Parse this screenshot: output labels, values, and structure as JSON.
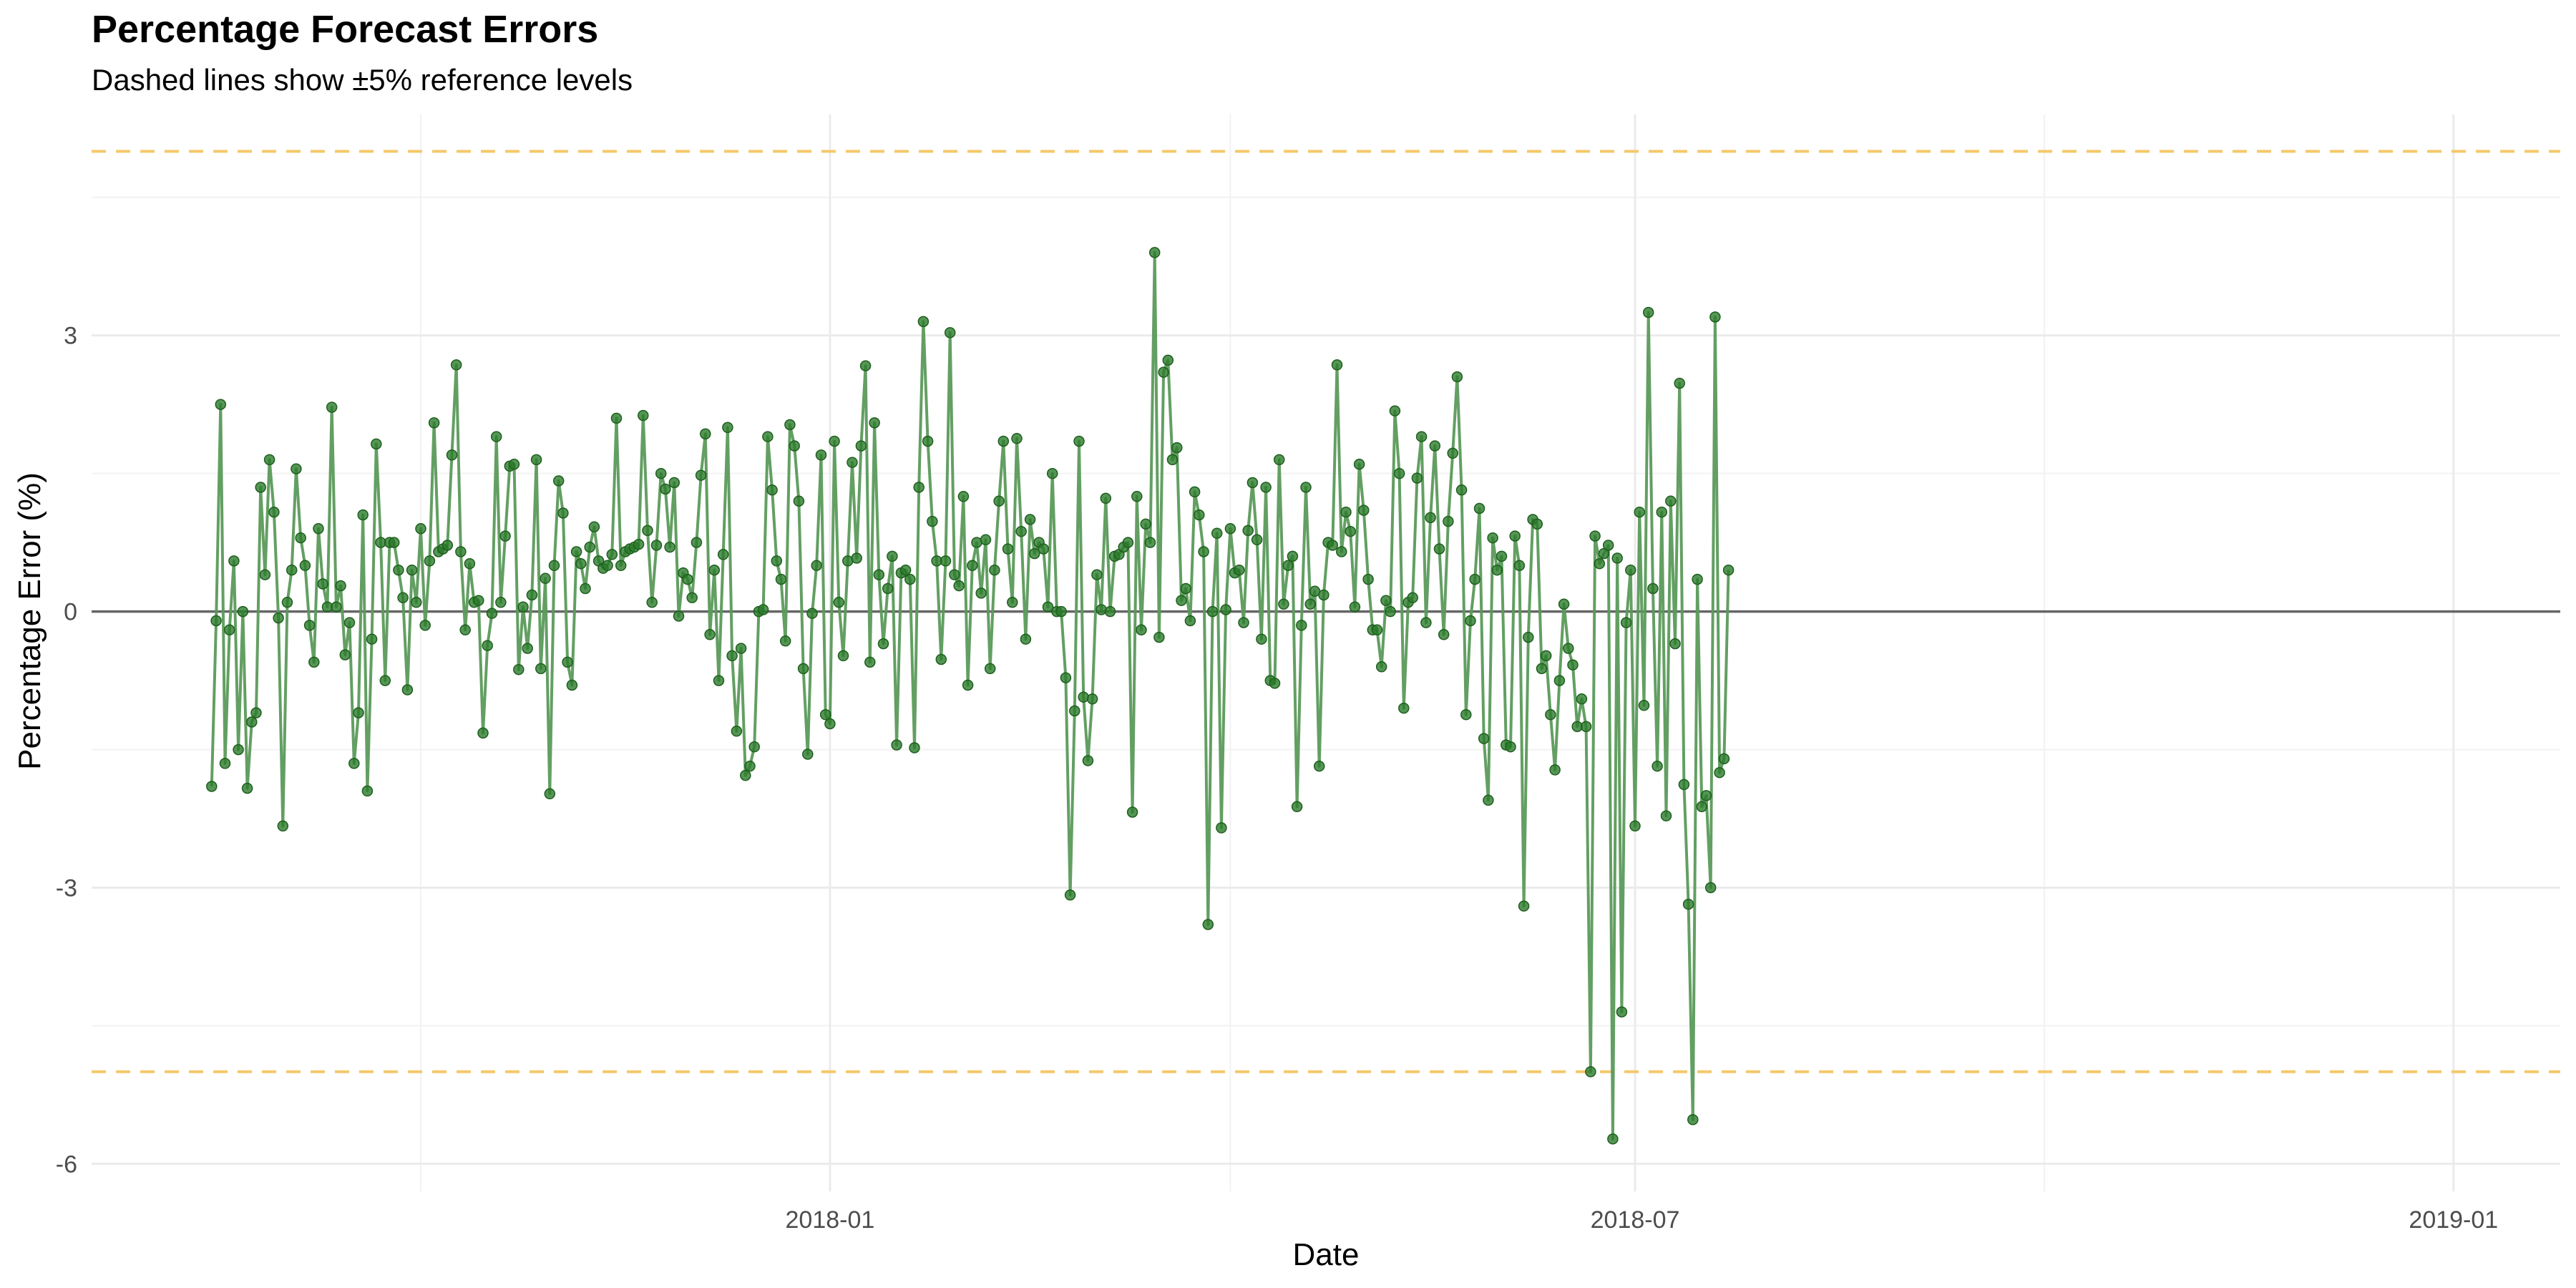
{
  "chart_data": {
    "type": "line",
    "title": "Percentage Forecast Errors",
    "subtitle": "Dashed lines show ±5% reference levels",
    "xlabel": "Date",
    "ylabel": "Percentage Error (%)",
    "x_tick_labels": [
      "2018-01",
      "2018-07",
      "2019-01"
    ],
    "y_tick_labels": [
      "3",
      "0",
      "-3",
      "-6"
    ],
    "y_ticks": [
      3,
      0,
      -3,
      -6
    ],
    "xlim": [
      "2017-07-19",
      "2019-01-25"
    ],
    "ylim": [
      -6.3,
      5.4
    ],
    "reference_lines": [
      {
        "value": 5,
        "color": "#f5c86b",
        "style": "dashed"
      },
      {
        "value": -5,
        "color": "#f5c86b",
        "style": "dashed"
      },
      {
        "value": 0,
        "color": "#666666",
        "style": "solid"
      }
    ],
    "grid": true,
    "x_start": "2017-08-15",
    "x_step_days": 1,
    "colors": {
      "series": "#2e8b2e",
      "line": "#5b9a5b",
      "point": "#2a7a2a"
    },
    "series": [
      {
        "values": [
          -1.9,
          -0.1,
          2.25,
          -1.65,
          -0.2,
          0.55,
          -1.5,
          0.0,
          -1.92,
          -1.2,
          -1.1,
          1.35,
          0.4,
          1.65,
          1.08,
          -0.07,
          -2.33,
          0.1,
          0.45,
          1.55,
          0.8,
          0.5,
          -0.15,
          -0.55,
          0.9,
          0.3,
          0.05,
          2.22,
          0.05,
          0.28,
          -0.47,
          -0.12,
          -1.65,
          -1.1,
          1.05,
          -1.95,
          -0.3,
          1.82,
          0.75,
          -0.75,
          0.75,
          0.75,
          0.45,
          0.15,
          -0.85,
          0.45,
          0.1,
          0.9,
          -0.15,
          0.55,
          2.05,
          0.65,
          0.68,
          0.72,
          1.7,
          2.68,
          0.65,
          -0.2,
          0.52,
          0.1,
          0.12,
          -1.32,
          -0.37,
          -0.02,
          1.9,
          0.1,
          0.82,
          1.58,
          1.6,
          -0.63,
          0.05,
          -0.4,
          0.18,
          1.65,
          -0.62,
          0.36,
          -1.98,
          0.5,
          1.42,
          1.07,
          -0.55,
          -0.8,
          0.65,
          0.52,
          0.25,
          0.7,
          0.92,
          0.55,
          0.47,
          0.5,
          0.62,
          2.1,
          0.5,
          0.65,
          0.68,
          0.7,
          0.73,
          2.13,
          0.88,
          0.1,
          0.72,
          1.5,
          1.33,
          0.7,
          1.4,
          -0.05,
          0.42,
          0.35,
          0.15,
          0.75,
          1.48,
          1.93,
          -0.25,
          0.45,
          -0.75,
          0.62,
          2.0,
          -0.48,
          -1.3,
          -0.4,
          -1.78,
          -1.68,
          -1.47,
          0.0,
          0.02,
          1.9,
          1.32,
          0.55,
          0.35,
          -0.32,
          2.03,
          1.8,
          1.2,
          -0.62,
          -1.55,
          -0.02,
          0.5,
          1.7,
          -1.12,
          -1.22,
          1.85,
          0.1,
          -0.48,
          0.55,
          1.62,
          0.58,
          1.8,
          2.67,
          -0.55,
          2.05,
          0.4,
          -0.35,
          0.25,
          0.6,
          -1.45,
          0.42,
          0.45,
          0.35,
          -1.48,
          1.35,
          3.15,
          1.85,
          0.98,
          0.55,
          -0.52,
          0.55,
          3.03,
          0.4,
          0.28,
          1.25,
          -0.8,
          0.5,
          0.75,
          0.2,
          0.78,
          -0.62,
          0.45,
          1.2,
          1.85,
          0.68,
          0.1,
          1.88,
          0.87,
          -0.3,
          1.0,
          0.63,
          0.75,
          0.68,
          0.05,
          1.5,
          0.0,
          0.0,
          -0.72,
          -3.08,
          -1.08,
          1.85,
          -0.93,
          -1.62,
          -0.95,
          0.4,
          0.02,
          1.23,
          0.0,
          0.6,
          0.62,
          0.7,
          0.75,
          -2.18,
          1.25,
          -0.2,
          0.95,
          0.75,
          3.9,
          -0.28,
          2.6,
          2.73,
          1.65,
          1.78,
          0.12,
          0.25,
          -0.1,
          1.3,
          1.05,
          0.65,
          -3.4,
          0.0,
          0.85,
          -2.35,
          0.02,
          0.9,
          0.42,
          0.45,
          -0.12,
          0.88,
          1.4,
          0.78,
          -0.3,
          1.35,
          -0.75,
          -0.78,
          1.65,
          0.08,
          0.5,
          0.6,
          -2.12,
          -0.15,
          1.35,
          0.08,
          0.22,
          -1.68,
          0.18,
          0.75,
          0.72,
          2.68,
          0.65,
          1.08,
          0.87,
          0.05,
          1.6,
          1.1,
          0.35,
          -0.2,
          -0.2,
          -0.6,
          0.12,
          0.0,
          2.18,
          1.5,
          -1.05,
          0.1,
          0.15,
          1.45,
          1.9,
          -0.12,
          1.02,
          1.8,
          0.68,
          -0.25,
          0.98,
          1.72,
          2.55,
          1.32,
          -1.12,
          -0.1,
          0.35,
          1.12,
          -1.38,
          -2.05,
          0.8,
          0.45,
          0.6,
          -1.45,
          -1.47,
          0.82,
          0.5,
          -3.2,
          -0.28,
          1.0,
          0.95,
          -0.62,
          -0.48,
          -1.12,
          -1.72,
          -0.75,
          0.08,
          -0.4,
          -0.58,
          -1.25,
          -0.95,
          -1.25,
          -5.0,
          0.82,
          0.52,
          0.63,
          0.72,
          -5.73,
          0.58,
          -4.35,
          -0.12,
          0.45,
          -2.33,
          1.08,
          -1.02,
          3.25,
          0.25,
          -1.68,
          1.08,
          -2.22,
          1.2,
          -0.35,
          2.48,
          -1.88,
          -3.18,
          -5.52,
          0.35,
          -2.12,
          -2.0,
          -3.0,
          3.2,
          -1.75,
          -1.6,
          0.45
        ]
      }
    ]
  }
}
